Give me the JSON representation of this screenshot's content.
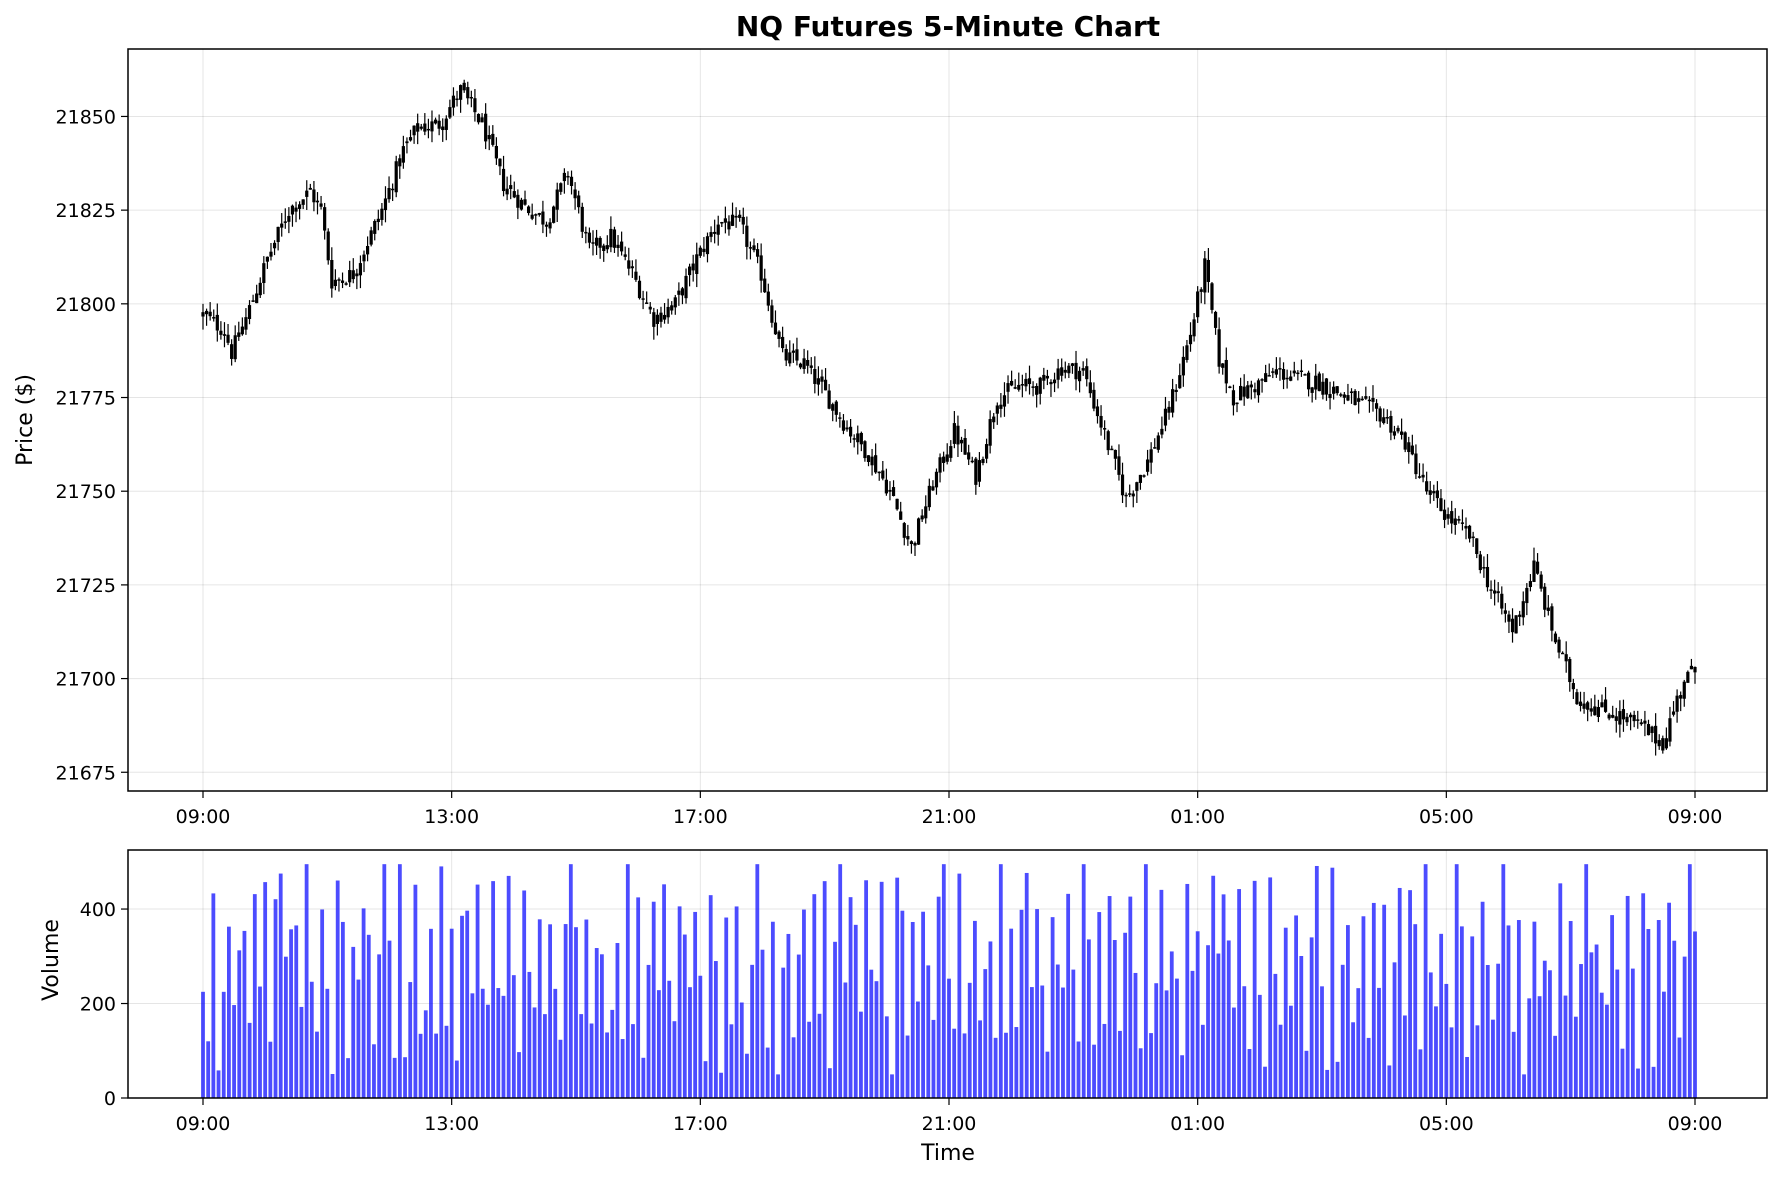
{
  "chart_data": [
    {
      "type": "candlestick",
      "title": "NQ Futures 5-Minute Chart",
      "ylabel": "Price ($)",
      "xlabel": "",
      "x_start": "09:00",
      "x_end": "09:00",
      "interval_minutes": 5,
      "ylim": [
        21670,
        21868
      ],
      "yticks": [
        "21675",
        "21700",
        "21725",
        "21750",
        "21775",
        "21800",
        "21825",
        "21850"
      ],
      "xticks": [
        "09:00",
        "13:00",
        "17:00",
        "21:00",
        "01:00",
        "05:00",
        "09:00"
      ],
      "grid": true,
      "candle_color": "#000000",
      "close_anchors": [
        [
          0,
          21797
        ],
        [
          6,
          21793
        ],
        [
          8,
          21787
        ],
        [
          12,
          21796
        ],
        [
          18,
          21812
        ],
        [
          24,
          21825
        ],
        [
          30,
          21830
        ],
        [
          33,
          21825
        ],
        [
          36,
          21806
        ],
        [
          42,
          21808
        ],
        [
          50,
          21825
        ],
        [
          56,
          21841
        ],
        [
          60,
          21847
        ],
        [
          66,
          21848
        ],
        [
          72,
          21857
        ],
        [
          78,
          21848
        ],
        [
          84,
          21832
        ],
        [
          90,
          21826
        ],
        [
          96,
          21822
        ],
        [
          102,
          21835
        ],
        [
          108,
          21814
        ],
        [
          114,
          21818
        ],
        [
          120,
          21808
        ],
        [
          126,
          21796
        ],
        [
          132,
          21800
        ],
        [
          138,
          21812
        ],
        [
          144,
          21822
        ],
        [
          150,
          21821
        ],
        [
          156,
          21808
        ],
        [
          162,
          21786
        ],
        [
          168,
          21784
        ],
        [
          174,
          21776
        ],
        [
          180,
          21767
        ],
        [
          186,
          21760
        ],
        [
          192,
          21750
        ],
        [
          198,
          21735
        ],
        [
          204,
          21752
        ],
        [
          210,
          21766
        ],
        [
          216,
          21754
        ],
        [
          222,
          21775
        ],
        [
          228,
          21778
        ],
        [
          234,
          21778
        ],
        [
          240,
          21783
        ],
        [
          246,
          21782
        ],
        [
          252,
          21765
        ],
        [
          258,
          21748
        ],
        [
          264,
          21758
        ],
        [
          270,
          21772
        ],
        [
          276,
          21792
        ],
        [
          280,
          21810
        ],
        [
          284,
          21785
        ],
        [
          288,
          21775
        ],
        [
          294,
          21778
        ],
        [
          300,
          21782
        ],
        [
          306,
          21780
        ],
        [
          312,
          21779
        ],
        [
          318,
          21776
        ],
        [
          324,
          21773
        ],
        [
          330,
          21770
        ],
        [
          336,
          21763
        ],
        [
          342,
          21750
        ],
        [
          348,
          21743
        ],
        [
          354,
          21738
        ],
        [
          360,
          21724
        ],
        [
          366,
          21713
        ],
        [
          372,
          21730
        ],
        [
          378,
          21710
        ],
        [
          384,
          21695
        ],
        [
          390,
          21692
        ],
        [
          396,
          21690
        ],
        [
          402,
          21687
        ],
        [
          408,
          21683
        ],
        [
          414,
          21700
        ],
        [
          417,
          21702
        ]
      ],
      "volume_levels": [
        300,
        120,
        450,
        80,
        280,
        380,
        160,
        260,
        330,
        90,
        480,
        210,
        420,
        110,
        350,
        470,
        230,
        390,
        290,
        140,
        440,
        310,
        180,
        400,
        250,
        70,
        460,
        340,
        120,
        380,
        200,
        430,
        270,
        95,
        360,
        490
      ]
    },
    {
      "type": "bar",
      "ylabel": "Volume",
      "xlabel": "Time",
      "ylim": [
        0,
        525
      ],
      "yticks": [
        "0",
        "200",
        "400"
      ],
      "xticks": [
        "09:00",
        "13:00",
        "17:00",
        "21:00",
        "01:00",
        "05:00",
        "09:00"
      ],
      "grid": true,
      "bar_color": "#0000ff",
      "bar_opacity": 0.7
    }
  ]
}
